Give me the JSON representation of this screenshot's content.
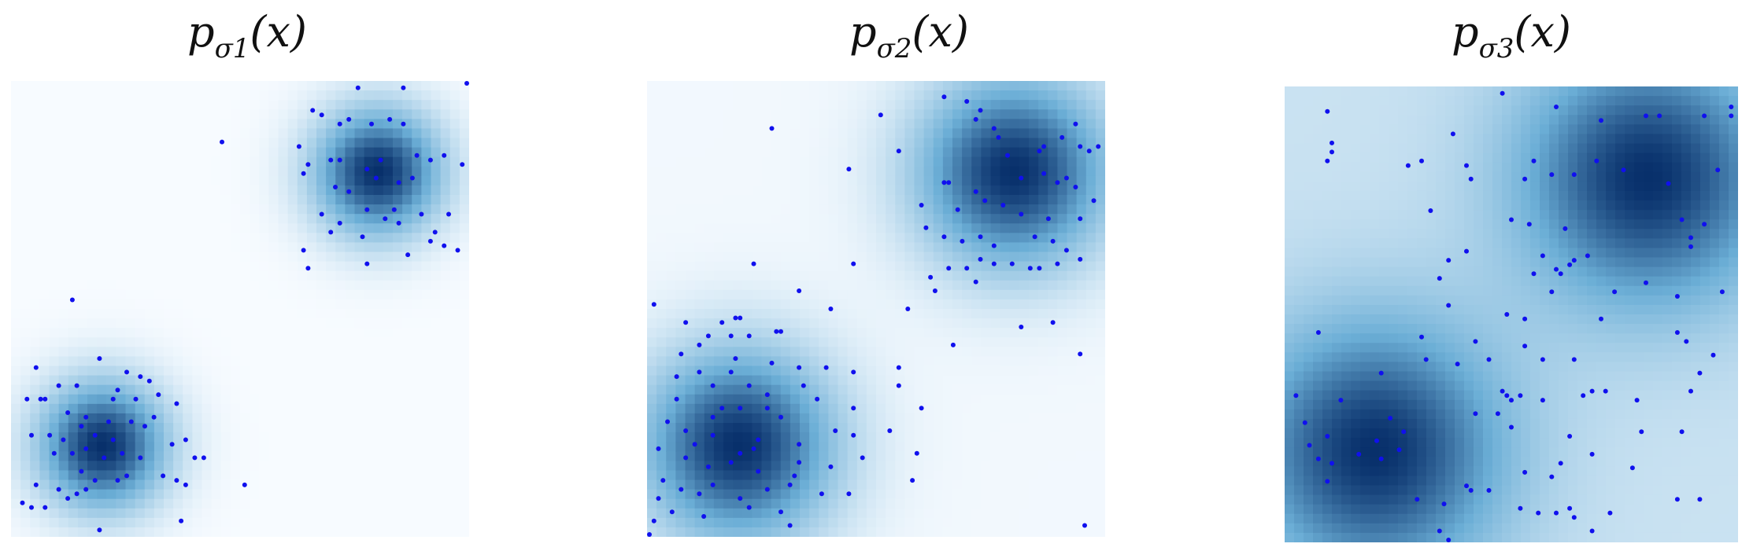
{
  "colors": {
    "point": "#1010ee",
    "density_low": "#f7fbff",
    "density_mid": "#6baed6",
    "density_high": "#08306b"
  },
  "chart_data": [
    {
      "type": "heatmap",
      "title": "p",
      "title_sub": "σ1",
      "title_arg": "(x)",
      "xlim": [
        0,
        1
      ],
      "ylim": [
        0,
        1
      ],
      "grid": false,
      "axes_visible": false,
      "density_centers": [
        [
          0.2,
          0.2
        ],
        [
          0.8,
          0.8
        ]
      ],
      "density_sigma": 0.1,
      "density_floor": 0.0,
      "points": [
        [
          0.46,
          0.87
        ],
        [
          0.76,
          0.99
        ],
        [
          0.86,
          0.99
        ],
        [
          1.0,
          1.0
        ],
        [
          0.66,
          0.94
        ],
        [
          0.68,
          0.93
        ],
        [
          0.72,
          0.91
        ],
        [
          0.74,
          0.92
        ],
        [
          0.79,
          0.91
        ],
        [
          0.83,
          0.92
        ],
        [
          0.86,
          0.91
        ],
        [
          0.63,
          0.86
        ],
        [
          0.65,
          0.82
        ],
        [
          0.7,
          0.83
        ],
        [
          0.72,
          0.83
        ],
        [
          0.78,
          0.81
        ],
        [
          0.81,
          0.83
        ],
        [
          0.89,
          0.84
        ],
        [
          0.92,
          0.83
        ],
        [
          0.95,
          0.84
        ],
        [
          0.99,
          0.82
        ],
        [
          0.64,
          0.8
        ],
        [
          0.71,
          0.77
        ],
        [
          0.74,
          0.76
        ],
        [
          0.8,
          0.79
        ],
        [
          0.85,
          0.78
        ],
        [
          0.88,
          0.79
        ],
        [
          0.68,
          0.71
        ],
        [
          0.72,
          0.69
        ],
        [
          0.78,
          0.72
        ],
        [
          0.82,
          0.7
        ],
        [
          0.84,
          0.72
        ],
        [
          0.9,
          0.71
        ],
        [
          0.93,
          0.67
        ],
        [
          0.96,
          0.71
        ],
        [
          0.64,
          0.63
        ],
        [
          0.78,
          0.6
        ],
        [
          0.87,
          0.62
        ],
        [
          0.92,
          0.65
        ],
        [
          0.95,
          0.64
        ],
        [
          0.98,
          0.63
        ],
        [
          0.65,
          0.59
        ],
        [
          0.77,
          0.66
        ],
        [
          0.85,
          0.69
        ],
        [
          0.7,
          0.67
        ],
        [
          0.13,
          0.52
        ],
        [
          0.19,
          0.39
        ],
        [
          0.14,
          0.33
        ],
        [
          0.05,
          0.37
        ],
        [
          0.07,
          0.3
        ],
        [
          0.28,
          0.35
        ],
        [
          0.3,
          0.34
        ],
        [
          0.1,
          0.33
        ],
        [
          0.23,
          0.32
        ],
        [
          0.27,
          0.3
        ],
        [
          0.32,
          0.31
        ],
        [
          0.36,
          0.29
        ],
        [
          0.12,
          0.27
        ],
        [
          0.16,
          0.26
        ],
        [
          0.21,
          0.25
        ],
        [
          0.26,
          0.25
        ],
        [
          0.31,
          0.26
        ],
        [
          0.38,
          0.21
        ],
        [
          0.03,
          0.3
        ],
        [
          0.06,
          0.3
        ],
        [
          0.08,
          0.22
        ],
        [
          0.11,
          0.21
        ],
        [
          0.15,
          0.24
        ],
        [
          0.18,
          0.22
        ],
        [
          0.22,
          0.21
        ],
        [
          0.24,
          0.18
        ],
        [
          0.28,
          0.17
        ],
        [
          0.35,
          0.2
        ],
        [
          0.4,
          0.17
        ],
        [
          0.13,
          0.18
        ],
        [
          0.15,
          0.14
        ],
        [
          0.18,
          0.12
        ],
        [
          0.23,
          0.12
        ],
        [
          0.25,
          0.13
        ],
        [
          0.33,
          0.13
        ],
        [
          0.36,
          0.12
        ],
        [
          0.38,
          0.11
        ],
        [
          0.42,
          0.17
        ],
        [
          0.51,
          0.11
        ],
        [
          0.05,
          0.11
        ],
        [
          0.1,
          0.1
        ],
        [
          0.14,
          0.09
        ],
        [
          0.02,
          0.07
        ],
        [
          0.04,
          0.06
        ],
        [
          0.07,
          0.06
        ],
        [
          0.12,
          0.08
        ],
        [
          0.16,
          0.1
        ],
        [
          0.37,
          0.03
        ],
        [
          0.19,
          0.01
        ],
        [
          0.16,
          0.19
        ],
        [
          0.2,
          0.17
        ],
        [
          0.09,
          0.18
        ],
        [
          0.29,
          0.24
        ],
        [
          0.22,
          0.3
        ],
        [
          0.25,
          0.36
        ],
        [
          0.04,
          0.22
        ]
      ]
    },
    {
      "type": "heatmap",
      "title": "p",
      "title_sub": "σ2",
      "title_arg": "(x)",
      "xlim": [
        0,
        1
      ],
      "ylim": [
        0,
        1
      ],
      "grid": false,
      "axes_visible": false,
      "density_centers": [
        [
          0.2,
          0.2
        ],
        [
          0.8,
          0.8
        ]
      ],
      "density_sigma": 0.15,
      "density_floor": 0.02,
      "points": [
        [
          0.27,
          0.9
        ],
        [
          0.51,
          0.93
        ],
        [
          0.65,
          0.97
        ],
        [
          0.7,
          0.96
        ],
        [
          0.72,
          0.92
        ],
        [
          0.73,
          0.94
        ],
        [
          0.76,
          0.9
        ],
        [
          0.77,
          0.88
        ],
        [
          0.91,
          0.88
        ],
        [
          0.94,
          0.91
        ],
        [
          0.55,
          0.85
        ],
        [
          0.79,
          0.84
        ],
        [
          0.86,
          0.85
        ],
        [
          0.87,
          0.86
        ],
        [
          0.95,
          0.86
        ],
        [
          0.99,
          0.86
        ],
        [
          0.97,
          0.85
        ],
        [
          0.44,
          0.81
        ],
        [
          0.65,
          0.78
        ],
        [
          0.66,
          0.78
        ],
        [
          0.72,
          0.76
        ],
        [
          0.82,
          0.79
        ],
        [
          0.87,
          0.8
        ],
        [
          0.9,
          0.78
        ],
        [
          0.92,
          0.79
        ],
        [
          0.94,
          0.77
        ],
        [
          0.98,
          0.74
        ],
        [
          0.6,
          0.73
        ],
        [
          0.68,
          0.72
        ],
        [
          0.74,
          0.74
        ],
        [
          0.78,
          0.73
        ],
        [
          0.82,
          0.71
        ],
        [
          0.88,
          0.7
        ],
        [
          0.95,
          0.7
        ],
        [
          0.61,
          0.68
        ],
        [
          0.65,
          0.66
        ],
        [
          0.69,
          0.65
        ],
        [
          0.73,
          0.66
        ],
        [
          0.76,
          0.64
        ],
        [
          0.85,
          0.66
        ],
        [
          0.89,
          0.65
        ],
        [
          0.92,
          0.63
        ],
        [
          0.9,
          0.6
        ],
        [
          0.73,
          0.61
        ],
        [
          0.7,
          0.59
        ],
        [
          0.62,
          0.57
        ],
        [
          0.66,
          0.59
        ],
        [
          0.76,
          0.6
        ],
        [
          0.8,
          0.6
        ],
        [
          0.84,
          0.59
        ],
        [
          0.86,
          0.59
        ],
        [
          0.95,
          0.61
        ],
        [
          0.57,
          0.5
        ],
        [
          0.63,
          0.54
        ],
        [
          0.72,
          0.56
        ],
        [
          0.82,
          0.46
        ],
        [
          0.89,
          0.47
        ],
        [
          0.67,
          0.42
        ],
        [
          0.95,
          0.4
        ],
        [
          0.23,
          0.6
        ],
        [
          0.45,
          0.6
        ],
        [
          0.33,
          0.54
        ],
        [
          0.4,
          0.5
        ],
        [
          0.01,
          0.51
        ],
        [
          0.2,
          0.48
        ],
        [
          0.19,
          0.48
        ],
        [
          0.16,
          0.47
        ],
        [
          0.18,
          0.44
        ],
        [
          0.08,
          0.47
        ],
        [
          0.29,
          0.45
        ],
        [
          0.28,
          0.45
        ],
        [
          0.22,
          0.44
        ],
        [
          0.13,
          0.44
        ],
        [
          0.11,
          0.42
        ],
        [
          0.07,
          0.4
        ],
        [
          0.19,
          0.39
        ],
        [
          0.18,
          0.36
        ],
        [
          0.27,
          0.38
        ],
        [
          0.33,
          0.37
        ],
        [
          0.39,
          0.37
        ],
        [
          0.45,
          0.36
        ],
        [
          0.55,
          0.37
        ],
        [
          0.11,
          0.36
        ],
        [
          0.14,
          0.33
        ],
        [
          0.22,
          0.33
        ],
        [
          0.34,
          0.33
        ],
        [
          0.55,
          0.33
        ],
        [
          0.06,
          0.3
        ],
        [
          0.16,
          0.28
        ],
        [
          0.2,
          0.28
        ],
        [
          0.26,
          0.28
        ],
        [
          0.29,
          0.26
        ],
        [
          0.37,
          0.3
        ],
        [
          0.45,
          0.28
        ],
        [
          0.6,
          0.28
        ],
        [
          0.04,
          0.25
        ],
        [
          0.08,
          0.23
        ],
        [
          0.1,
          0.2
        ],
        [
          0.14,
          0.22
        ],
        [
          0.2,
          0.18
        ],
        [
          0.24,
          0.21
        ],
        [
          0.33,
          0.2
        ],
        [
          0.41,
          0.23
        ],
        [
          0.45,
          0.22
        ],
        [
          0.53,
          0.23
        ],
        [
          0.02,
          0.19
        ],
        [
          0.08,
          0.17
        ],
        [
          0.13,
          0.15
        ],
        [
          0.18,
          0.16
        ],
        [
          0.24,
          0.14
        ],
        [
          0.33,
          0.16
        ],
        [
          0.4,
          0.15
        ],
        [
          0.47,
          0.17
        ],
        [
          0.59,
          0.18
        ],
        [
          0.03,
          0.12
        ],
        [
          0.07,
          0.1
        ],
        [
          0.11,
          0.09
        ],
        [
          0.14,
          0.11
        ],
        [
          0.2,
          0.08
        ],
        [
          0.26,
          0.1
        ],
        [
          0.31,
          0.11
        ],
        [
          0.38,
          0.09
        ],
        [
          0.44,
          0.09
        ],
        [
          0.58,
          0.12
        ],
        [
          0.02,
          0.08
        ],
        [
          0.01,
          0.03
        ],
        [
          0.05,
          0.05
        ],
        [
          0.12,
          0.04
        ],
        [
          0.22,
          0.06
        ],
        [
          0.29,
          0.05
        ],
        [
          0.31,
          0.02
        ],
        [
          0.0,
          0.0
        ],
        [
          0.96,
          0.02
        ],
        [
          0.23,
          0.19
        ],
        [
          0.26,
          0.31
        ],
        [
          0.14,
          0.26
        ],
        [
          0.06,
          0.35
        ],
        [
          0.32,
          0.13
        ]
      ]
    },
    {
      "type": "heatmap",
      "title": "p",
      "title_sub": "σ3",
      "title_arg": "(x)",
      "xlim": [
        0,
        1
      ],
      "ylim": [
        0,
        1
      ],
      "grid": false,
      "axes_visible": false,
      "density_centers": [
        [
          0.2,
          0.2
        ],
        [
          0.8,
          0.8
        ]
      ],
      "density_sigma": 0.2,
      "density_floor": 0.18,
      "points": [
        [
          0.09,
          0.95
        ],
        [
          0.48,
          0.99
        ],
        [
          0.6,
          0.96
        ],
        [
          0.7,
          0.93
        ],
        [
          0.8,
          0.94
        ],
        [
          0.83,
          0.94
        ],
        [
          0.93,
          0.94
        ],
        [
          0.99,
          0.96
        ],
        [
          0.99,
          0.94
        ],
        [
          0.1,
          0.88
        ],
        [
          0.1,
          0.86
        ],
        [
          0.09,
          0.84
        ],
        [
          0.37,
          0.9
        ],
        [
          0.27,
          0.83
        ],
        [
          0.3,
          0.84
        ],
        [
          0.4,
          0.83
        ],
        [
          0.55,
          0.84
        ],
        [
          0.59,
          0.81
        ],
        [
          0.64,
          0.81
        ],
        [
          0.69,
          0.84
        ],
        [
          0.75,
          0.82
        ],
        [
          0.85,
          0.79
        ],
        [
          0.96,
          0.82
        ],
        [
          0.41,
          0.8
        ],
        [
          0.53,
          0.8
        ],
        [
          0.32,
          0.73
        ],
        [
          0.5,
          0.71
        ],
        [
          0.54,
          0.7
        ],
        [
          0.62,
          0.69
        ],
        [
          0.88,
          0.71
        ],
        [
          0.9,
          0.67
        ],
        [
          0.93,
          0.7
        ],
        [
          0.9,
          0.65
        ],
        [
          0.36,
          0.62
        ],
        [
          0.4,
          0.64
        ],
        [
          0.57,
          0.63
        ],
        [
          0.6,
          0.6
        ],
        [
          0.63,
          0.61
        ],
        [
          0.64,
          0.62
        ],
        [
          0.67,
          0.63
        ],
        [
          0.34,
          0.58
        ],
        [
          0.55,
          0.59
        ],
        [
          0.61,
          0.59
        ],
        [
          0.59,
          0.55
        ],
        [
          0.8,
          0.57
        ],
        [
          0.73,
          0.55
        ],
        [
          0.87,
          0.54
        ],
        [
          0.97,
          0.55
        ],
        [
          0.36,
          0.52
        ],
        [
          0.49,
          0.5
        ],
        [
          0.53,
          0.49
        ],
        [
          0.3,
          0.45
        ],
        [
          0.42,
          0.44
        ],
        [
          0.53,
          0.43
        ],
        [
          0.7,
          0.49
        ],
        [
          0.87,
          0.46
        ],
        [
          0.89,
          0.44
        ],
        [
          0.95,
          0.41
        ],
        [
          0.21,
          0.37
        ],
        [
          0.31,
          0.4
        ],
        [
          0.38,
          0.39
        ],
        [
          0.45,
          0.4
        ],
        [
          0.57,
          0.4
        ],
        [
          0.64,
          0.4
        ],
        [
          0.07,
          0.46
        ],
        [
          0.92,
          0.37
        ],
        [
          0.48,
          0.33
        ],
        [
          0.49,
          0.32
        ],
        [
          0.5,
          0.31
        ],
        [
          0.52,
          0.32
        ],
        [
          0.57,
          0.31
        ],
        [
          0.66,
          0.32
        ],
        [
          0.68,
          0.33
        ],
        [
          0.71,
          0.33
        ],
        [
          0.78,
          0.31
        ],
        [
          0.9,
          0.33
        ],
        [
          0.12,
          0.31
        ],
        [
          0.23,
          0.27
        ],
        [
          0.42,
          0.28
        ],
        [
          0.47,
          0.28
        ],
        [
          0.26,
          0.24
        ],
        [
          0.21,
          0.18
        ],
        [
          0.09,
          0.23
        ],
        [
          0.02,
          0.32
        ],
        [
          0.04,
          0.26
        ],
        [
          0.05,
          0.21
        ],
        [
          0.07,
          0.18
        ],
        [
          0.16,
          0.19
        ],
        [
          0.2,
          0.22
        ],
        [
          0.63,
          0.23
        ],
        [
          0.68,
          0.19
        ],
        [
          0.79,
          0.24
        ],
        [
          0.88,
          0.24
        ],
        [
          0.61,
          0.17
        ],
        [
          0.59,
          0.14
        ],
        [
          0.53,
          0.15
        ],
        [
          0.4,
          0.12
        ],
        [
          0.41,
          0.11
        ],
        [
          0.45,
          0.11
        ],
        [
          0.77,
          0.16
        ],
        [
          0.52,
          0.07
        ],
        [
          0.56,
          0.06
        ],
        [
          0.6,
          0.06
        ],
        [
          0.63,
          0.07
        ],
        [
          0.64,
          0.05
        ],
        [
          0.72,
          0.06
        ],
        [
          0.87,
          0.09
        ],
        [
          0.92,
          0.09
        ],
        [
          0.68,
          0.02
        ],
        [
          0.35,
          0.08
        ],
        [
          0.29,
          0.09
        ],
        [
          0.09,
          0.13
        ],
        [
          0.25,
          0.2
        ],
        [
          0.34,
          0.02
        ],
        [
          0.36,
          0.0
        ],
        [
          0.1,
          0.17
        ],
        [
          0.5,
          0.25
        ]
      ]
    }
  ]
}
